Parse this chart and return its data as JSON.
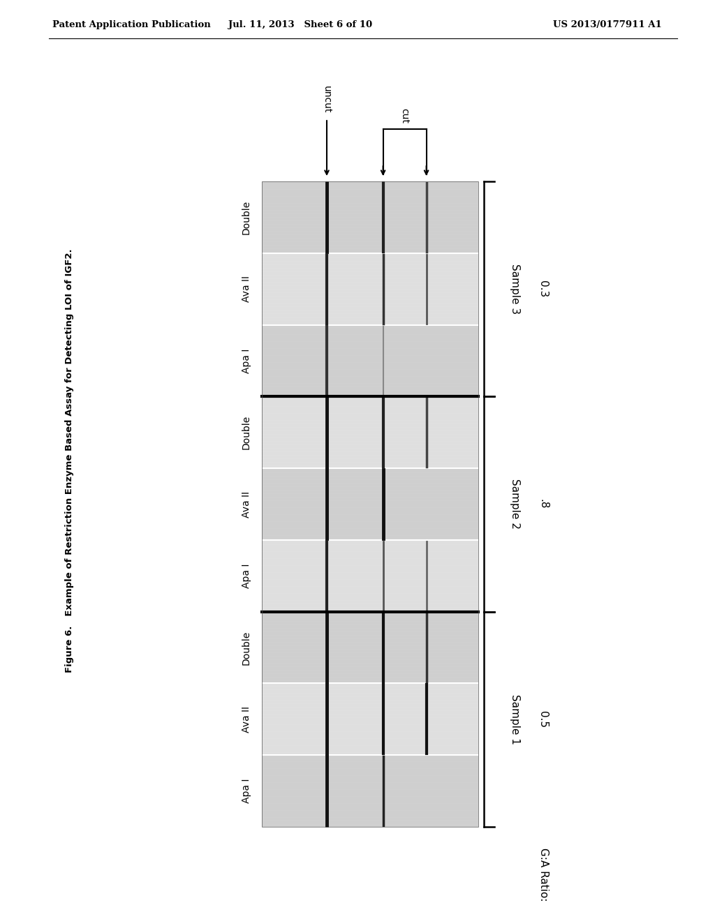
{
  "header_left": "Patent Application Publication",
  "header_mid": "Jul. 11, 2013   Sheet 6 of 10",
  "header_right": "US 2013/0177911 A1",
  "figure_caption_bold": "Figure 6.",
  "figure_caption_rest": "   Example of Restriction Enzyme Based Assay for Detecting LOI of IGF2.",
  "samples": [
    {
      "name": "Sample 1",
      "ratio": "0.5"
    },
    {
      "name": "Sample 2",
      "ratio": ".8"
    },
    {
      "name": "Sample 3",
      "ratio": "0.3"
    }
  ],
  "lane_labels": [
    "Apa I",
    "Ava II",
    "Double"
  ],
  "bg_color": "#ffffff",
  "gel_bg_even": "#d0d0d0",
  "gel_bg_odd": "#e0e0e0",
  "gel_separator_color": "#888888",
  "band_colors": [
    "#111111",
    "#222222",
    "#333333",
    "#444444",
    "#666666"
  ],
  "sample_separator_color": "#000000",
  "bracket_color": "#000000",
  "arrow_color": "#000000",
  "header_line_color": "#000000",
  "uncut_label": "uncut",
  "cut_label": "cut",
  "ga_ratio_label": "G:A Ratio:"
}
